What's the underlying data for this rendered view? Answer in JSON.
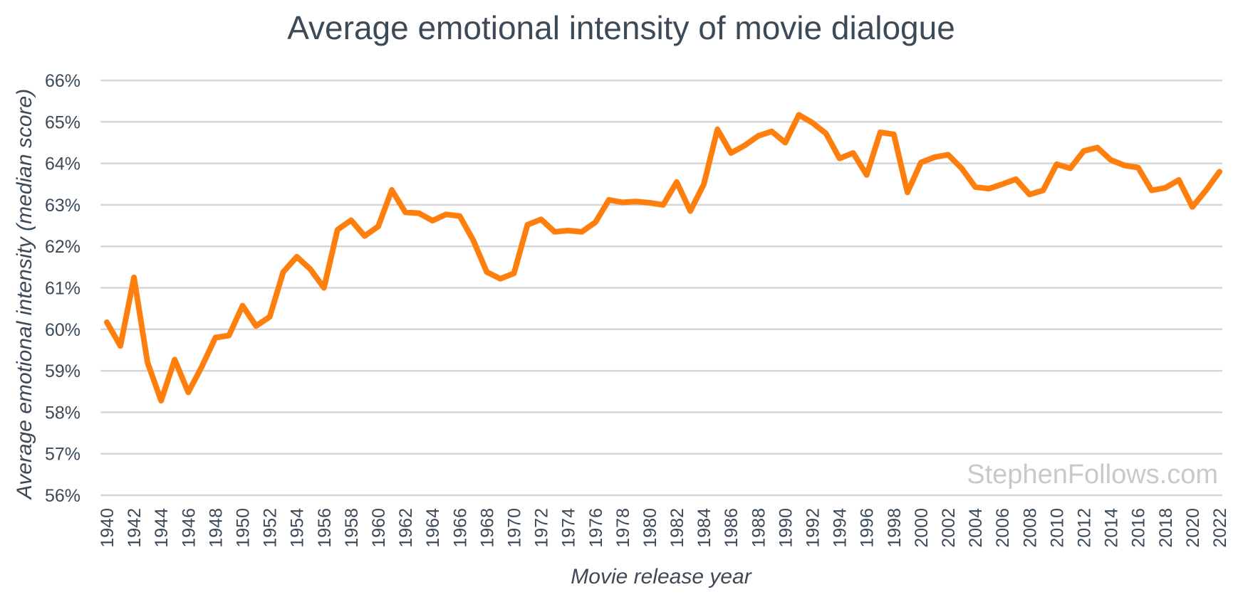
{
  "watermark": "StephenFollows.com",
  "chart_data": {
    "type": "line",
    "title": "Average emotional intensity of movie dialogue",
    "xlabel": "Movie release year",
    "ylabel": "Average emotional intensity (median score)",
    "ylim": [
      56,
      66
    ],
    "yticks": [
      "56%",
      "57%",
      "58%",
      "59%",
      "60%",
      "61%",
      "62%",
      "63%",
      "64%",
      "65%",
      "66%"
    ],
    "xticks": [
      "1940",
      "1942",
      "1944",
      "1946",
      "1948",
      "1950",
      "1952",
      "1954",
      "1956",
      "1958",
      "1960",
      "1962",
      "1964",
      "1966",
      "1968",
      "1970",
      "1972",
      "1974",
      "1976",
      "1978",
      "1980",
      "1982",
      "1984",
      "1986",
      "1988",
      "1990",
      "1992",
      "1994",
      "1996",
      "1998",
      "2000",
      "2002",
      "2004",
      "2006",
      "2008",
      "2010",
      "2012",
      "2014",
      "2016",
      "2018",
      "2020",
      "2022"
    ],
    "grid": true,
    "color": "#ff7f0e",
    "x": [
      1940,
      1941,
      1942,
      1943,
      1944,
      1945,
      1946,
      1947,
      1948,
      1949,
      1950,
      1951,
      1952,
      1953,
      1954,
      1955,
      1956,
      1957,
      1958,
      1959,
      1960,
      1961,
      1962,
      1963,
      1964,
      1965,
      1966,
      1967,
      1968,
      1969,
      1970,
      1971,
      1972,
      1973,
      1974,
      1975,
      1976,
      1977,
      1978,
      1979,
      1980,
      1981,
      1982,
      1983,
      1984,
      1985,
      1986,
      1987,
      1988,
      1989,
      1990,
      1991,
      1992,
      1993,
      1994,
      1995,
      1996,
      1997,
      1998,
      1999,
      2000,
      2001,
      2002,
      2003,
      2004,
      2005,
      2006,
      2007,
      2008,
      2009,
      2010,
      2011,
      2012,
      2013,
      2014,
      2015,
      2016,
      2017,
      2018,
      2019,
      2020,
      2021,
      2022
    ],
    "values": [
      60.17,
      59.6,
      61.25,
      59.2,
      58.28,
      59.27,
      58.48,
      59.1,
      59.8,
      59.85,
      60.57,
      60.08,
      60.3,
      61.38,
      61.75,
      61.45,
      61.0,
      62.4,
      62.63,
      62.25,
      62.48,
      63.36,
      62.82,
      62.8,
      62.62,
      62.77,
      62.73,
      62.15,
      61.38,
      61.22,
      61.35,
      62.52,
      62.65,
      62.35,
      62.38,
      62.35,
      62.58,
      63.12,
      63.06,
      63.08,
      63.05,
      63.0,
      63.55,
      62.85,
      63.5,
      64.82,
      64.25,
      64.43,
      64.66,
      64.77,
      64.5,
      65.17,
      64.98,
      64.72,
      64.12,
      64.25,
      63.72,
      64.75,
      64.7,
      63.3,
      64.02,
      64.15,
      64.21,
      63.88,
      63.43,
      63.39,
      63.5,
      63.62,
      63.25,
      63.35,
      63.98,
      63.88,
      64.3,
      64.38,
      64.08,
      63.95,
      63.9,
      63.35,
      63.41,
      63.6,
      62.95,
      63.35,
      63.8
    ]
  }
}
